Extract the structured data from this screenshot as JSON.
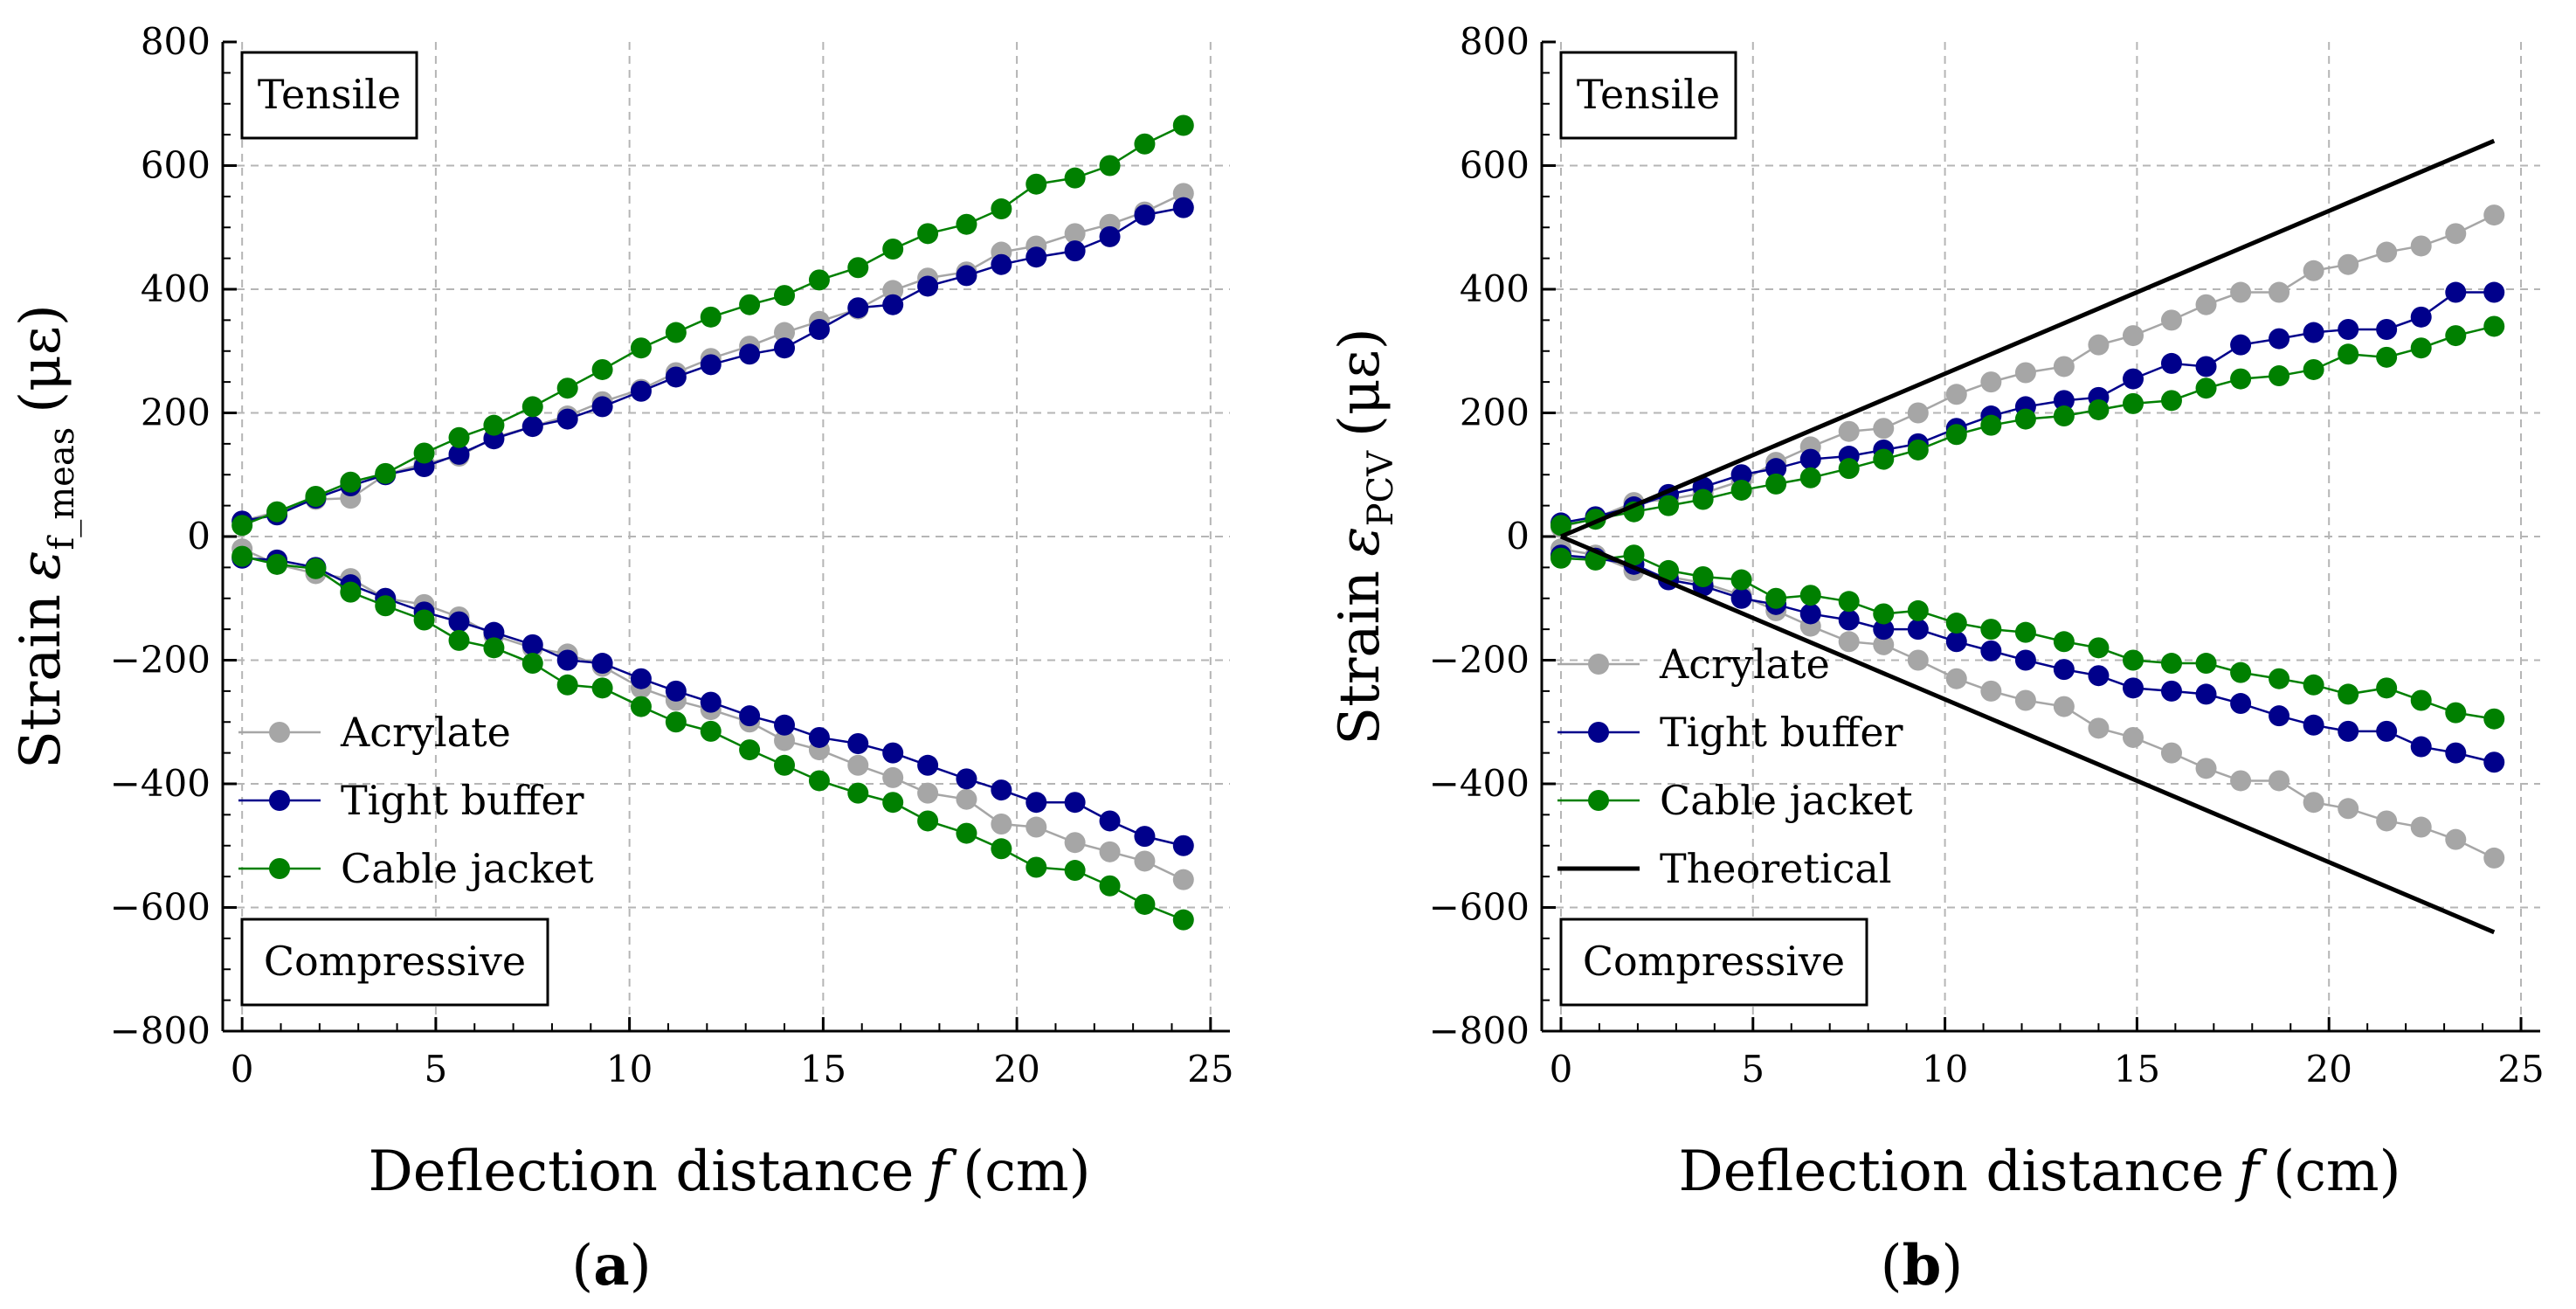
{
  "colors": {
    "acrylate": "#a6a6a6",
    "tight_buffer": "#00008b",
    "cable_jacket": "#008000",
    "theoretical": "#000000"
  },
  "chart_data": [
    {
      "type": "line",
      "panel_label_open": "(",
      "panel_label_letter": "a",
      "panel_label_close": ")",
      "xlabel": "Deflection distance",
      "xlabel_var": "f",
      "xlabel_unit": "(cm)",
      "ylabel_prefix": "Strain",
      "ylabel_symbol": "ε",
      "ylabel_sub": "f_meas",
      "ylabel_unit": "(με)",
      "xlim": [
        -0.5,
        25.5
      ],
      "ylim": [
        -800,
        800
      ],
      "x_ticks": [
        0,
        5,
        10,
        15,
        20,
        25
      ],
      "x_tick_labels": [
        "0",
        "5",
        "10",
        "15",
        "20",
        "25"
      ],
      "y_ticks": [
        -800,
        -600,
        -400,
        -200,
        0,
        200,
        400,
        600,
        800
      ],
      "y_tick_labels": [
        "−800",
        "−600",
        "−400",
        "−200",
        "0",
        "200",
        "400",
        "600",
        "800"
      ],
      "grid": true,
      "tensile_label": "Tensile",
      "compressive_label": "Compressive",
      "legend_position": "lower-left",
      "series": [
        {
          "name": "Acrylate",
          "color_key": "acrylate",
          "marker": true,
          "legend": true,
          "x": [
            0,
            0.9,
            1.9,
            2.8,
            3.7,
            4.7,
            5.6,
            6.5,
            7.5,
            8.4,
            9.3,
            10.3,
            11.2,
            12.1,
            13.1,
            14.0,
            14.9,
            15.9,
            16.8,
            17.7,
            18.7,
            19.6,
            20.5,
            21.5,
            22.4,
            23.3,
            24.3
          ],
          "values": [
            25,
            40,
            60,
            62,
            100,
            118,
            130,
            160,
            178,
            195,
            218,
            238,
            265,
            288,
            308,
            330,
            348,
            368,
            398,
            418,
            428,
            460,
            470,
            490,
            505,
            525,
            555
          ]
        },
        {
          "name": "Acrylate (compressive)",
          "color_key": "acrylate",
          "marker": true,
          "legend": false,
          "x": [
            0,
            0.9,
            1.9,
            2.8,
            3.7,
            4.7,
            5.6,
            6.5,
            7.5,
            8.4,
            9.3,
            10.3,
            11.2,
            12.1,
            13.1,
            14.0,
            14.9,
            15.9,
            16.8,
            17.7,
            18.7,
            19.6,
            20.5,
            21.5,
            22.4,
            23.3,
            24.3
          ],
          "values": [
            -20,
            -45,
            -60,
            -68,
            -100,
            -110,
            -130,
            -160,
            -180,
            -190,
            -210,
            -245,
            -265,
            -280,
            -300,
            -330,
            -345,
            -370,
            -390,
            -415,
            -425,
            -465,
            -470,
            -495,
            -510,
            -525,
            -555
          ]
        },
        {
          "name": "Tight buffer",
          "color_key": "tight_buffer",
          "marker": true,
          "legend": true,
          "x": [
            0,
            0.9,
            1.9,
            2.8,
            3.7,
            4.7,
            5.6,
            6.5,
            7.5,
            8.4,
            9.3,
            10.3,
            11.2,
            12.1,
            13.1,
            14.0,
            14.9,
            15.9,
            16.8,
            17.7,
            18.7,
            19.6,
            20.5,
            21.5,
            22.4,
            23.3,
            24.3
          ],
          "values": [
            25,
            35,
            62,
            82,
            100,
            113,
            133,
            158,
            178,
            190,
            210,
            235,
            258,
            278,
            295,
            305,
            335,
            370,
            375,
            405,
            422,
            440,
            452,
            462,
            485,
            520,
            532
          ]
        },
        {
          "name": "Tight buffer (compressive)",
          "color_key": "tight_buffer",
          "marker": true,
          "legend": false,
          "x": [
            0,
            0.9,
            1.9,
            2.8,
            3.7,
            4.7,
            5.6,
            6.5,
            7.5,
            8.4,
            9.3,
            10.3,
            11.2,
            12.1,
            13.1,
            14.0,
            14.9,
            15.9,
            16.8,
            17.7,
            18.7,
            19.6,
            20.5,
            21.5,
            22.4,
            23.3,
            24.3
          ],
          "values": [
            -35,
            -38,
            -50,
            -78,
            -100,
            -122,
            -138,
            -155,
            -175,
            -200,
            -205,
            -230,
            -250,
            -268,
            -290,
            -305,
            -325,
            -335,
            -350,
            -370,
            -392,
            -410,
            -430,
            -430,
            -460,
            -485,
            -500
          ]
        },
        {
          "name": "Cable jacket",
          "color_key": "cable_jacket",
          "marker": true,
          "legend": true,
          "x": [
            0,
            0.9,
            1.9,
            2.8,
            3.7,
            4.7,
            5.6,
            6.5,
            7.5,
            8.4,
            9.3,
            10.3,
            11.2,
            12.1,
            13.1,
            14.0,
            14.9,
            15.9,
            16.8,
            17.7,
            18.7,
            19.6,
            20.5,
            21.5,
            22.4,
            23.3,
            24.3
          ],
          "values": [
            18,
            40,
            65,
            88,
            102,
            135,
            160,
            180,
            210,
            240,
            270,
            305,
            330,
            355,
            375,
            390,
            415,
            435,
            465,
            490,
            505,
            530,
            570,
            580,
            600,
            635,
            665
          ]
        },
        {
          "name": "Cable jacket (compressive)",
          "color_key": "cable_jacket",
          "marker": true,
          "legend": false,
          "x": [
            0,
            0.9,
            1.9,
            2.8,
            3.7,
            4.7,
            5.6,
            6.5,
            7.5,
            8.4,
            9.3,
            10.3,
            11.2,
            12.1,
            13.1,
            14.0,
            14.9,
            15.9,
            16.8,
            17.7,
            18.7,
            19.6,
            20.5,
            21.5,
            22.4,
            23.3,
            24.3
          ],
          "values": [
            -32,
            -45,
            -52,
            -90,
            -112,
            -135,
            -168,
            -180,
            -205,
            -240,
            -245,
            -275,
            -300,
            -315,
            -345,
            -370,
            -395,
            -415,
            -430,
            -460,
            -480,
            -505,
            -535,
            -540,
            -565,
            -595,
            -620
          ]
        }
      ]
    },
    {
      "type": "line",
      "panel_label_open": "(",
      "panel_label_letter": "b",
      "panel_label_close": ")",
      "xlabel": "Deflection distance",
      "xlabel_var": "f",
      "xlabel_unit": "(cm)",
      "ylabel_prefix": "Strain",
      "ylabel_symbol": "ε",
      "ylabel_sub": "PCV",
      "ylabel_unit": "(με)",
      "xlim": [
        -0.5,
        25.5
      ],
      "ylim": [
        -800,
        800
      ],
      "x_ticks": [
        0,
        5,
        10,
        15,
        20,
        25
      ],
      "x_tick_labels": [
        "0",
        "5",
        "10",
        "15",
        "20",
        "25"
      ],
      "y_ticks": [
        -800,
        -600,
        -400,
        -200,
        0,
        200,
        400,
        600,
        800
      ],
      "y_tick_labels": [
        "−800",
        "−600",
        "−400",
        "−200",
        "0",
        "200",
        "400",
        "600",
        "800"
      ],
      "grid": true,
      "tensile_label": "Tensile",
      "compressive_label": "Compressive",
      "legend_position": "lower-left",
      "series": [
        {
          "name": "Acrylate",
          "color_key": "acrylate",
          "marker": true,
          "legend": true,
          "x": [
            0,
            0.9,
            1.9,
            2.8,
            3.7,
            4.7,
            5.6,
            6.5,
            7.5,
            8.4,
            9.3,
            10.3,
            11.2,
            12.1,
            13.1,
            14.0,
            14.9,
            15.9,
            16.8,
            17.7,
            18.7,
            19.6,
            20.5,
            21.5,
            22.4,
            23.3,
            24.3
          ],
          "values": [
            15,
            30,
            55,
            60,
            70,
            90,
            120,
            145,
            170,
            175,
            200,
            230,
            250,
            265,
            275,
            310,
            325,
            350,
            375,
            395,
            395,
            430,
            440,
            460,
            470,
            490,
            520
          ]
        },
        {
          "name": "Acrylate (compressive)",
          "color_key": "acrylate",
          "marker": true,
          "legend": false,
          "x": [
            0,
            0.9,
            1.9,
            2.8,
            3.7,
            4.7,
            5.6,
            6.5,
            7.5,
            8.4,
            9.3,
            10.3,
            11.2,
            12.1,
            13.1,
            14.0,
            14.9,
            15.9,
            16.8,
            17.7,
            18.7,
            19.6,
            20.5,
            21.5,
            22.4,
            23.3,
            24.3
          ],
          "values": [
            -20,
            -30,
            -55,
            -65,
            -75,
            -95,
            -120,
            -145,
            -170,
            -175,
            -200,
            -230,
            -250,
            -265,
            -275,
            -310,
            -325,
            -350,
            -375,
            -395,
            -395,
            -430,
            -440,
            -460,
            -470,
            -490,
            -520
          ]
        },
        {
          "name": "Tight buffer",
          "color_key": "tight_buffer",
          "marker": true,
          "legend": true,
          "x": [
            0,
            0.9,
            1.9,
            2.8,
            3.7,
            4.7,
            5.6,
            6.5,
            7.5,
            8.4,
            9.3,
            10.3,
            11.2,
            12.1,
            13.1,
            14.0,
            14.9,
            15.9,
            16.8,
            17.7,
            18.7,
            19.6,
            20.5,
            21.5,
            22.4,
            23.3,
            24.3
          ],
          "values": [
            22,
            32,
            48,
            68,
            80,
            100,
            110,
            125,
            130,
            140,
            150,
            175,
            195,
            210,
            220,
            225,
            255,
            280,
            275,
            310,
            320,
            330,
            335,
            335,
            355,
            395,
            395
          ]
        },
        {
          "name": "Tight buffer (compressive)",
          "color_key": "tight_buffer",
          "marker": true,
          "legend": false,
          "x": [
            0,
            0.9,
            1.9,
            2.8,
            3.7,
            4.7,
            5.6,
            6.5,
            7.5,
            8.4,
            9.3,
            10.3,
            11.2,
            12.1,
            13.1,
            14.0,
            14.9,
            15.9,
            16.8,
            17.7,
            18.7,
            19.6,
            20.5,
            21.5,
            22.4,
            23.3,
            24.3
          ],
          "values": [
            -30,
            -35,
            -45,
            -70,
            -80,
            -100,
            -110,
            -125,
            -135,
            -150,
            -150,
            -170,
            -185,
            -200,
            -215,
            -225,
            -245,
            -250,
            -255,
            -270,
            -290,
            -305,
            -315,
            -315,
            -340,
            -350,
            -365
          ]
        },
        {
          "name": "Cable jacket",
          "color_key": "cable_jacket",
          "marker": true,
          "legend": true,
          "x": [
            0,
            0.9,
            1.9,
            2.8,
            3.7,
            4.7,
            5.6,
            6.5,
            7.5,
            8.4,
            9.3,
            10.3,
            11.2,
            12.1,
            13.1,
            14.0,
            14.9,
            15.9,
            16.8,
            17.7,
            18.7,
            19.6,
            20.5,
            21.5,
            22.4,
            23.3,
            24.3
          ],
          "values": [
            18,
            28,
            40,
            50,
            60,
            75,
            85,
            95,
            110,
            125,
            140,
            165,
            180,
            190,
            195,
            205,
            215,
            220,
            240,
            255,
            260,
            270,
            295,
            290,
            305,
            325,
            340
          ]
        },
        {
          "name": "Cable jacket (compressive)",
          "color_key": "cable_jacket",
          "marker": true,
          "legend": false,
          "x": [
            0,
            0.9,
            1.9,
            2.8,
            3.7,
            4.7,
            5.6,
            6.5,
            7.5,
            8.4,
            9.3,
            10.3,
            11.2,
            12.1,
            13.1,
            14.0,
            14.9,
            15.9,
            16.8,
            17.7,
            18.7,
            19.6,
            20.5,
            21.5,
            22.4,
            23.3,
            24.3
          ],
          "values": [
            -35,
            -38,
            -30,
            -55,
            -65,
            -70,
            -100,
            -95,
            -105,
            -125,
            -120,
            -140,
            -150,
            -155,
            -170,
            -180,
            -200,
            -205,
            -205,
            -220,
            -230,
            -240,
            -255,
            -245,
            -265,
            -285,
            -295
          ]
        },
        {
          "name": "Theoretical",
          "color_key": "theoretical",
          "marker": false,
          "legend": true,
          "x": [
            0,
            24.3
          ],
          "values": [
            0,
            640
          ]
        },
        {
          "name": "Theoretical (compressive)",
          "color_key": "theoretical",
          "marker": false,
          "legend": false,
          "x": [
            0,
            24.3
          ],
          "values": [
            0,
            -640
          ]
        }
      ]
    }
  ]
}
